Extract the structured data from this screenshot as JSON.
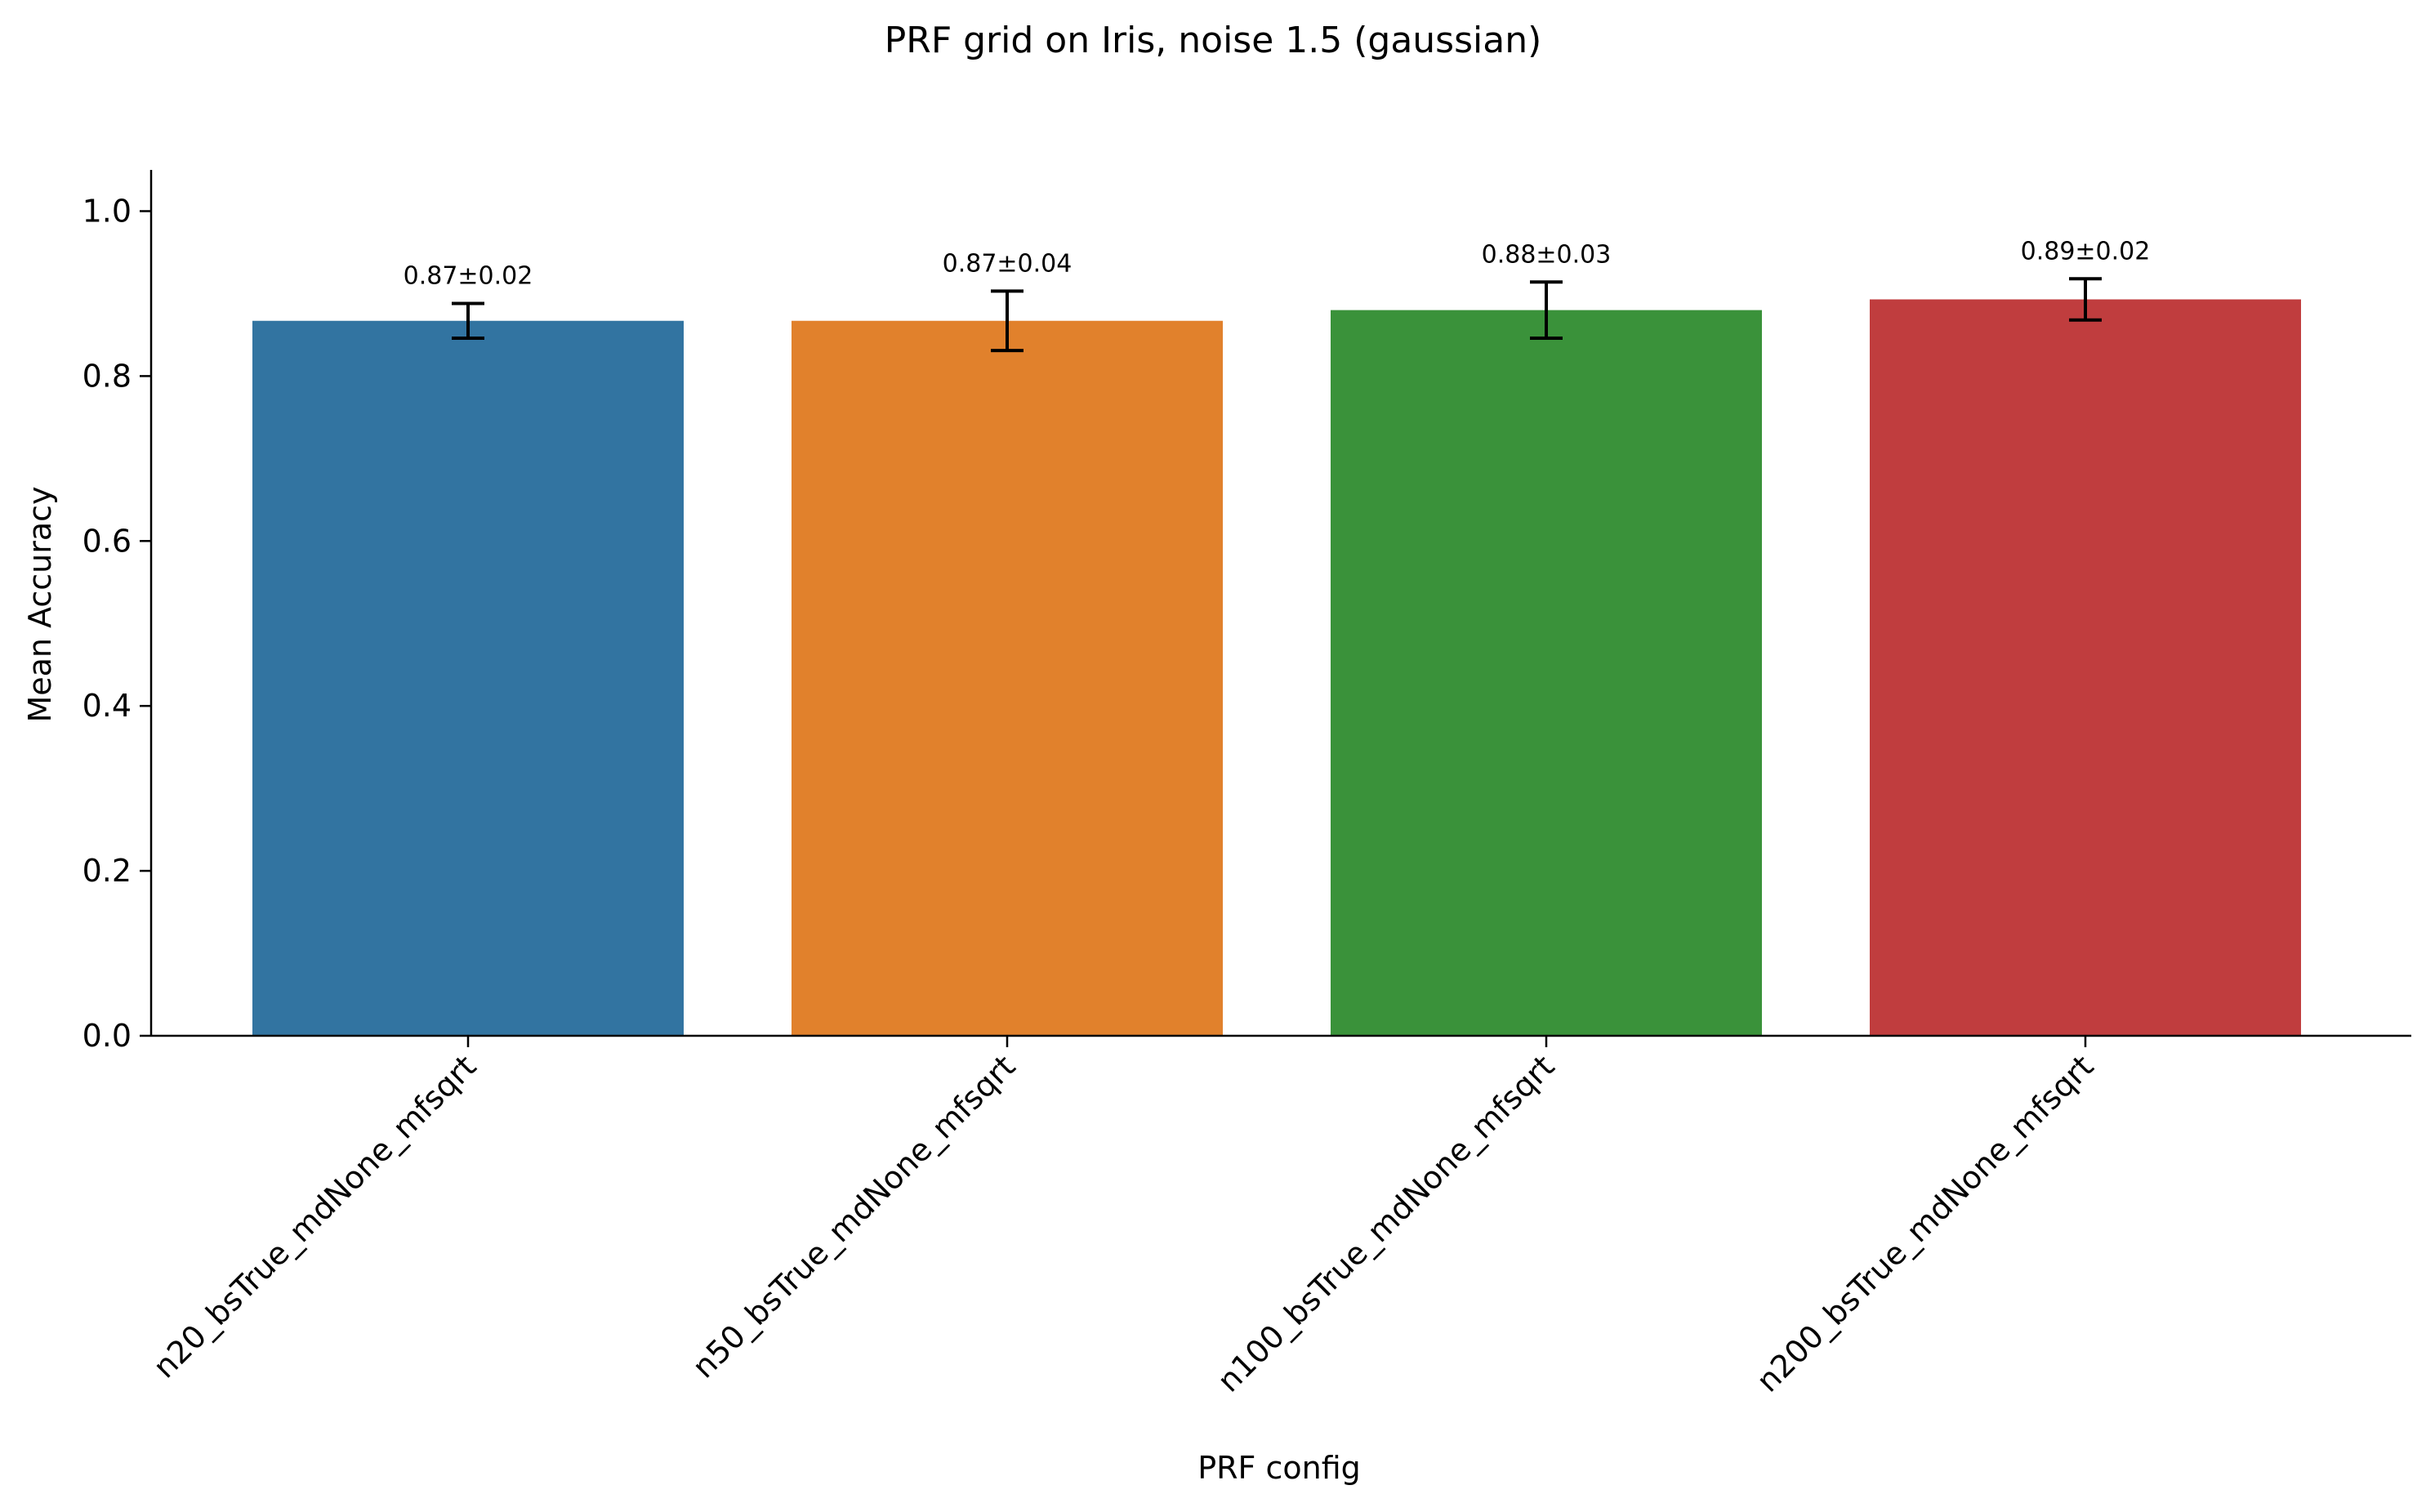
{
  "chart_data": {
    "type": "bar",
    "title": "PRF grid on Iris, noise 1.5 (gaussian)",
    "xlabel": "PRF config",
    "ylabel": "Mean Accuracy",
    "categories": [
      "n20_bsTrue_mdNone_mfsqrt",
      "n50_bsTrue_mdNone_mfsqrt",
      "n100_bsTrue_mdNone_mfsqrt",
      "n200_bsTrue_mdNone_mfsqrt"
    ],
    "values": [
      0.867,
      0.867,
      0.88,
      0.893
    ],
    "errors": [
      0.021,
      0.036,
      0.034,
      0.025
    ],
    "value_labels": [
      "0.87±0.02",
      "0.87±0.04",
      "0.88±0.03",
      "0.89±0.02"
    ],
    "colors": [
      "#3274a1",
      "#e1812c",
      "#3a923a",
      "#c03d3e"
    ],
    "ylim": [
      0,
      1.05
    ],
    "yticks": [
      0.0,
      0.2,
      0.4,
      0.6,
      0.8,
      1.0
    ],
    "ytick_labels": [
      "0.0",
      "0.2",
      "0.4",
      "0.6",
      "0.8",
      "1.0"
    ],
    "grid": false,
    "legend": "none"
  }
}
